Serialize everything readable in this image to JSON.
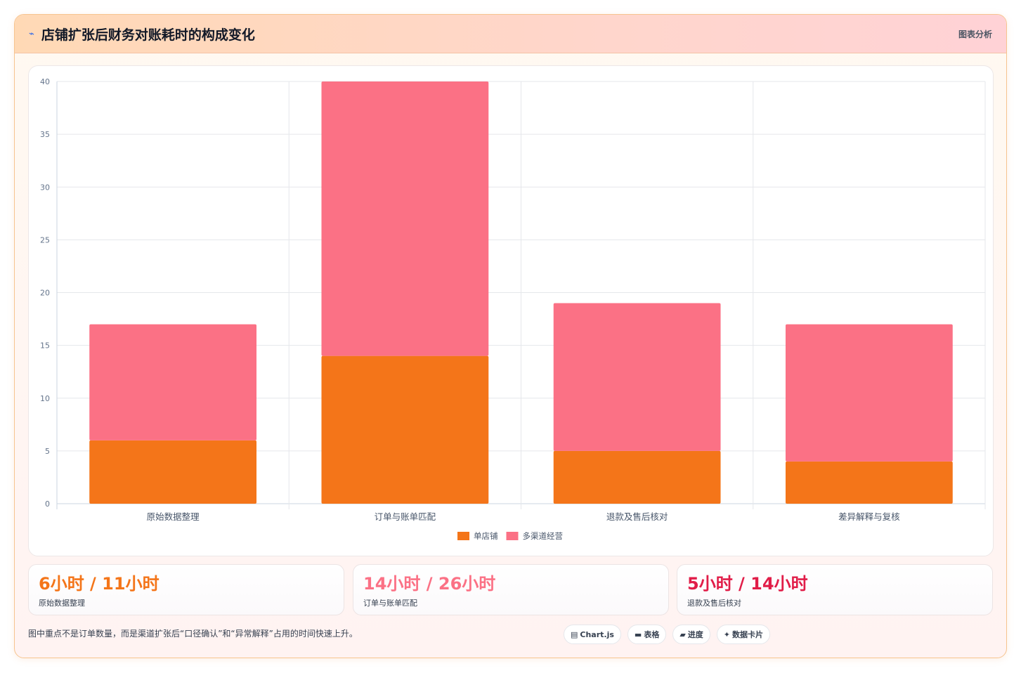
{
  "header": {
    "icon": "chart-line-icon",
    "title": "店铺扩张后财务对账耗时的构成变化",
    "right_label": "图表分析"
  },
  "chart_data": {
    "type": "bar",
    "stacked": true,
    "categories": [
      "原始数据整理",
      "订单与账单匹配",
      "退款及售后核对",
      "差异解释与复核"
    ],
    "series": [
      {
        "name": "单店铺",
        "color": "#f47519",
        "values": [
          6,
          14,
          5,
          4
        ]
      },
      {
        "name": "多渠道经营",
        "color": "#fb7185",
        "values": [
          11,
          26,
          14,
          13
        ]
      }
    ],
    "ylim": [
      0,
      40
    ],
    "yticks": [
      0,
      5,
      10,
      15,
      20,
      25,
      30,
      35,
      40
    ],
    "grid": true,
    "legend_position": "bottom"
  },
  "stats": [
    {
      "value": "6小时 / 11小时",
      "label": "原始数据整理",
      "color": "#f47519"
    },
    {
      "value": "14小时 / 26小时",
      "label": "订单与账单匹配",
      "color": "#fb7185"
    },
    {
      "value": "5小时 / 14小时",
      "label": "退款及售后核对",
      "color": "#e11d48"
    }
  ],
  "footer": {
    "note": "图中重点不是订单数量，而是渠道扩张后“口径确认”和“异常解释”占用的时间快速上升。",
    "tags": [
      {
        "icon": "chart-icon",
        "label": "Chart.js"
      },
      {
        "icon": "table-icon",
        "label": "表格"
      },
      {
        "icon": "progress-icon",
        "label": "进度"
      },
      {
        "icon": "sparkle-icon",
        "label": "数据卡片"
      }
    ]
  }
}
